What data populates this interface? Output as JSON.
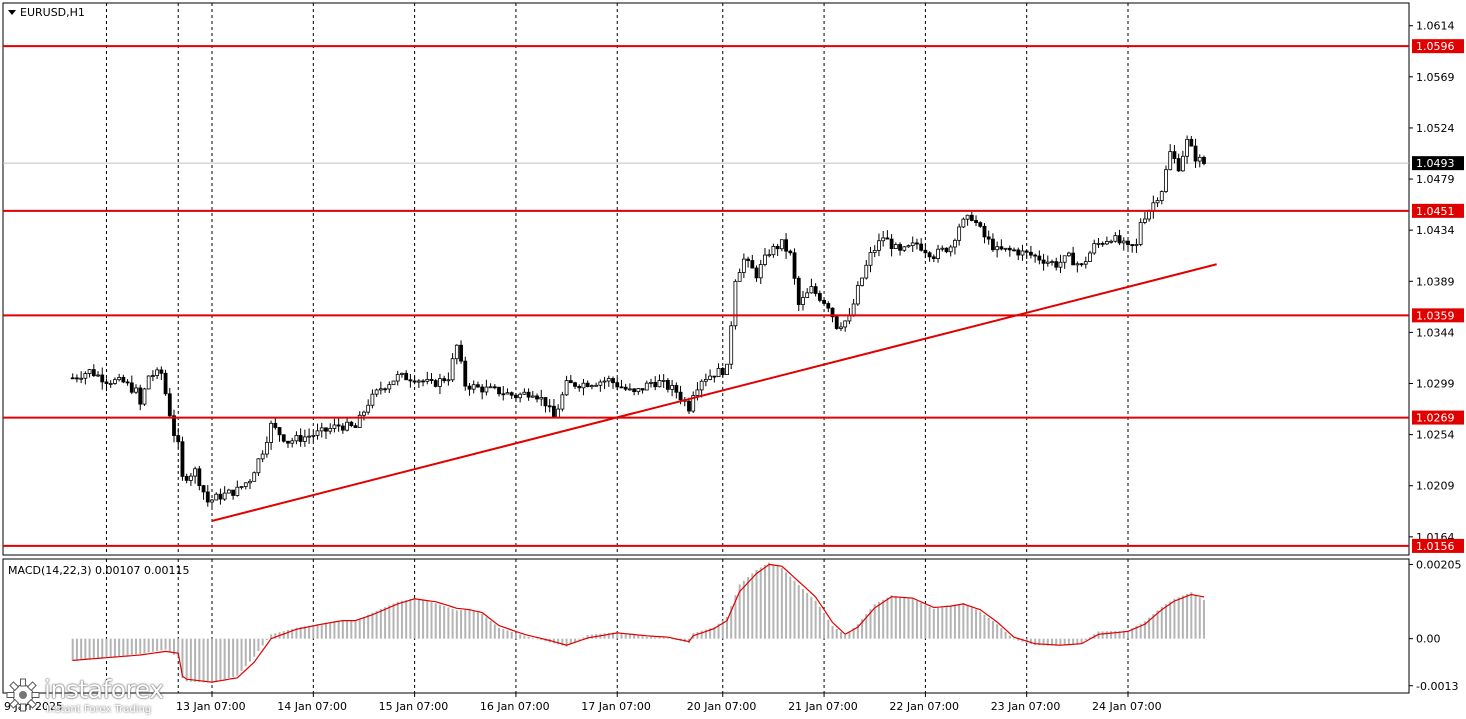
{
  "symbol_label": "EURUSD,H1",
  "macd_label": "MACD(14,22,3) 0.00107 0.00115",
  "watermark": {
    "brand": "instaforex",
    "tagline": "Instant Forex Trading"
  },
  "colors": {
    "level": "#e00000",
    "trend": "#e00000",
    "candle": "#000000",
    "macd_hist": "#b4b4b4",
    "signal": "#e00000",
    "grid": "#000000"
  },
  "chart_data": [
    {
      "type": "candlestick",
      "symbol": "EURUSD",
      "timeframe": "H1",
      "y_ticks": [
        "1.0614",
        "1.0569",
        "1.0524",
        "1.0479",
        "1.0434",
        "1.0389",
        "1.0344",
        "1.0299",
        "1.0254",
        "1.0209",
        "1.0164"
      ],
      "ylim": [
        1.0148,
        1.0634
      ],
      "current_price": "1.0493",
      "x_ticks": [
        "13 Jan 07:00",
        "14 Jan 07:00",
        "15 Jan 07:00",
        "16 Jan 07:00",
        "17 Jan 07:00",
        "20 Jan 07:00",
        "21 Jan 07:00",
        "22 Jan 07:00",
        "23 Jan 07:00",
        "24 Jan 07:00"
      ],
      "first_date_label": "9 Jan 2025",
      "horizontal_levels": [
        "1.0596",
        "1.0451",
        "1.0359",
        "1.0269",
        "1.0156"
      ],
      "trendline": {
        "from": [
          "13 Jan 07:00",
          1.0178
        ],
        "to": [
          "25 Jan 04:00",
          1.0404
        ]
      },
      "close_path": [
        [
          "9 Jan 23:00",
          1.0304
        ],
        [
          "10 Jan 03:00",
          1.031
        ],
        [
          "10 Jan 07:00",
          1.0302
        ],
        [
          "10 Jan 11:00",
          1.03
        ],
        [
          "10 Jan 14:00",
          1.0292
        ],
        [
          "10 Jan 15:00",
          1.028
        ],
        [
          "10 Jan 17:00",
          1.0306
        ],
        [
          "10 Jan 20:00",
          1.0308
        ],
        [
          "10 Jan 23:00",
          1.0255
        ],
        [
          "11 Jan 02:00",
          1.0244
        ],
        [
          "11 Jan 07:00",
          1.0248
        ],
        [
          "11 Jan 10:00",
          1.024
        ],
        [
          "12 Jan 23:00",
          1.0213
        ],
        [
          "13 Jan 03:00",
          1.0222
        ],
        [
          "13 Jan 06:00",
          1.0195
        ],
        [
          "13 Jan 09:00",
          1.02
        ],
        [
          "13 Jan 13:00",
          1.0205
        ],
        [
          "13 Jan 16:00",
          1.0215
        ],
        [
          "13 Jan 19:00",
          1.024
        ],
        [
          "13 Jan 21:00",
          1.0262
        ],
        [
          "14 Jan 01:00",
          1.0248
        ],
        [
          "14 Jan 05:00",
          1.0252
        ],
        [
          "14 Jan 09:00",
          1.0256
        ],
        [
          "14 Jan 13:00",
          1.0262
        ],
        [
          "14 Jan 17:00",
          1.026
        ],
        [
          "14 Jan 20:00",
          1.0282
        ],
        [
          "14 Jan 23:00",
          1.0295
        ],
        [
          "15 Jan 03:00",
          1.0305
        ],
        [
          "15 Jan 07:00",
          1.0304
        ],
        [
          "15 Jan 11:00",
          1.0298
        ],
        [
          "15 Jan 15:00",
          1.0305
        ],
        [
          "15 Jan 17:00",
          1.0332
        ],
        [
          "15 Jan 19:00",
          1.0298
        ],
        [
          "15 Jan 22:00",
          1.0295
        ],
        [
          "16 Jan 03:00",
          1.0292
        ],
        [
          "16 Jan 07:00",
          1.0288
        ],
        [
          "16 Jan 11:00",
          1.0292
        ],
        [
          "16 Jan 14:00",
          1.0282
        ],
        [
          "16 Jan 16:00",
          1.0268
        ],
        [
          "16 Jan 19:00",
          1.0298
        ],
        [
          "16 Jan 23:00",
          1.0299
        ],
        [
          "17 Jan 05:00",
          1.0302
        ],
        [
          "17 Jan 07:00",
          1.0298
        ],
        [
          "17 Jan 11:00",
          1.029
        ],
        [
          "17 Jan 15:00",
          1.03
        ],
        [
          "17 Jan 17:00",
          1.03
        ],
        [
          "17 Jan 21:00",
          1.0292
        ],
        [
          "18 Jan 02:00",
          1.0278
        ],
        [
          "18 Jan 06:00",
          1.0286
        ],
        [
          "20 Jan 02:00",
          1.0303
        ],
        [
          "20 Jan 05:00",
          1.0308
        ],
        [
          "20 Jan 08:00",
          1.0312
        ],
        [
          "20 Jan 10:00",
          1.0392
        ],
        [
          "20 Jan 12:00",
          1.0408
        ],
        [
          "20 Jan 15:00",
          1.0395
        ],
        [
          "20 Jan 18:00",
          1.0415
        ],
        [
          "20 Jan 21:00",
          1.0422
        ],
        [
          "20 Jan 23:00",
          1.0412
        ],
        [
          "21 Jan 01:00",
          1.0368
        ],
        [
          "21 Jan 04:00",
          1.0382
        ],
        [
          "21 Jan 08:00",
          1.0368
        ],
        [
          "21 Jan 10:00",
          1.035
        ],
        [
          "21 Jan 13:00",
          1.0356
        ],
        [
          "21 Jan 15:00",
          1.0382
        ],
        [
          "21 Jan 18:00",
          1.0412
        ],
        [
          "21 Jan 21:00",
          1.0428
        ],
        [
          "22 Jan 01:00",
          1.0414
        ],
        [
          "22 Jan 05:00",
          1.0422
        ],
        [
          "22 Jan 09:00",
          1.0412
        ],
        [
          "22 Jan 13:00",
          1.042
        ],
        [
          "22 Jan 15:00",
          1.0438
        ],
        [
          "22 Jan 18:00",
          1.0446
        ],
        [
          "22 Jan 21:00",
          1.0428
        ],
        [
          "23 Jan 00:00",
          1.0416
        ],
        [
          "23 Jan 04:00",
          1.0416
        ],
        [
          "23 Jan 08:00",
          1.0412
        ],
        [
          "23 Jan 11:00",
          1.0408
        ],
        [
          "23 Jan 14:00",
          1.0404
        ],
        [
          "23 Jan 17:00",
          1.041
        ],
        [
          "23 Jan 20:00",
          1.0402
        ],
        [
          "23 Jan 23:00",
          1.042
        ],
        [
          "24 Jan 03:00",
          1.0428
        ],
        [
          "24 Jan 07:00",
          1.0418
        ],
        [
          "24 Jan 09:00",
          1.042
        ],
        [
          "24 Jan 10:00",
          1.0442
        ],
        [
          "24 Jan 12:00",
          1.0452
        ],
        [
          "24 Jan 15:00",
          1.047
        ],
        [
          "24 Jan 17:00",
          1.0502
        ],
        [
          "24 Jan 19:00",
          1.049
        ],
        [
          "24 Jan 21:00",
          1.0512
        ],
        [
          "24 Jan 23:00",
          1.0498
        ],
        [
          "25 Jan 01:00",
          1.0493
        ]
      ],
      "macd": {
        "title": "MACD(14,22,3) 0.00107 0.00115",
        "parameters": [
          14,
          22,
          3
        ],
        "main": "0.00107",
        "signal": "0.00115",
        "y_ticks": [
          "0.00205",
          "0.00",
          "-0.0013"
        ],
        "ylim": [
          -0.0015,
          0.0022
        ],
        "histogram_path": [
          [
            "9 Jan 23:00",
            -0.00062
          ],
          [
            "10 Jan 15:00",
            -0.00042
          ],
          [
            "10 Jan 21:00",
            -0.0003
          ],
          [
            "11 Jan 01:00",
            -0.00052
          ],
          [
            "11 Jan 07:00",
            -0.00082
          ],
          [
            "11 Jan 13:00",
            -0.001
          ],
          [
            "13 Jan 01:00",
            -0.00118
          ],
          [
            "13 Jan 07:00",
            -0.00122
          ],
          [
            "13 Jan 13:00",
            -0.00102
          ],
          [
            "13 Jan 17:00",
            -0.0005
          ],
          [
            "13 Jan 21:00",
            0.00012
          ],
          [
            "14 Jan 03:00",
            0.0003
          ],
          [
            "14 Jan 09:00",
            0.00042
          ],
          [
            "14 Jan 14:00",
            0.00052
          ],
          [
            "14 Jan 17:00",
            0.00048
          ],
          [
            "14 Jan 21:00",
            0.00072
          ],
          [
            "15 Jan 03:00",
            0.00102
          ],
          [
            "15 Jan 07:00",
            0.00112
          ],
          [
            "15 Jan 12:00",
            0.00098
          ],
          [
            "15 Jan 17:00",
            0.00078
          ],
          [
            "15 Jan 20:00",
            0.00082
          ],
          [
            "15 Jan 23:00",
            0.00068
          ],
          [
            "16 Jan 03:00",
            0.0003
          ],
          [
            "16 Jan 09:00",
            8e-05
          ],
          [
            "16 Jan 15:00",
            -0.0001
          ],
          [
            "16 Jan 19:00",
            -0.00022
          ],
          [
            "17 Jan 00:00",
            0.0001
          ],
          [
            "17 Jan 07:00",
            0.00018
          ],
          [
            "17 Jan 14:00",
            5e-05
          ],
          [
            "17 Jan 19:00",
            2e-05
          ],
          [
            "18 Jan 00:00",
            -0.00012
          ],
          [
            "18 Jan 05:00",
            -0.00018
          ],
          [
            "20 Jan 00:00",
            0.00015
          ],
          [
            "20 Jan 05:00",
            0.00032
          ],
          [
            "20 Jan 08:00",
            0.0006
          ],
          [
            "20 Jan 11:00",
            0.0015
          ],
          [
            "20 Jan 15:00",
            0.0019
          ],
          [
            "20 Jan 18:00",
            0.0021
          ],
          [
            "20 Jan 21:00",
            0.00195
          ],
          [
            "21 Jan 01:00",
            0.00148
          ],
          [
            "21 Jan 05:00",
            0.00105
          ],
          [
            "21 Jan 09:00",
            0.00035
          ],
          [
            "21 Jan 12:00",
            0.0001
          ],
          [
            "21 Jan 15:00",
            0.0004
          ],
          [
            "21 Jan 19:00",
            0.00095
          ],
          [
            "21 Jan 23:00",
            0.0012
          ],
          [
            "22 Jan 04:00",
            0.0011
          ],
          [
            "22 Jan 09:00",
            0.00082
          ],
          [
            "22 Jan 13:00",
            0.00092
          ],
          [
            "22 Jan 16:00",
            0.00098
          ],
          [
            "22 Jan 20:00",
            0.00075
          ],
          [
            "23 Jan 00:00",
            0.0004
          ],
          [
            "23 Jan 04:00",
            -2e-05
          ],
          [
            "23 Jan 09:00",
            -0.00018
          ],
          [
            "23 Jan 15:00",
            -0.0002
          ],
          [
            "23 Jan 20:00",
            -0.00012
          ],
          [
            "24 Jan 00:00",
            0.0002
          ],
          [
            "24 Jan 07:00",
            0.00022
          ],
          [
            "24 Jan 11:00",
            0.00048
          ],
          [
            "24 Jan 15:00",
            0.00088
          ],
          [
            "24 Jan 18:00",
            0.0011
          ],
          [
            "24 Jan 22:00",
            0.00128
          ],
          [
            "25 Jan 01:00",
            0.00107
          ]
        ],
        "signal_path": [
          [
            "9 Jan 23:00",
            -0.0006
          ],
          [
            "10 Jan 15:00",
            -0.00045
          ],
          [
            "10 Jan 21:00",
            -0.00035
          ],
          [
            "11 Jan 01:00",
            -0.0004
          ],
          [
            "11 Jan 07:00",
            -0.00075
          ],
          [
            "11 Jan 13:00",
            -0.00095
          ],
          [
            "13 Jan 01:00",
            -0.00112
          ],
          [
            "13 Jan 07:00",
            -0.0012
          ],
          [
            "13 Jan 13:00",
            -0.00108
          ],
          [
            "13 Jan 17:00",
            -0.00065
          ],
          [
            "13 Jan 21:00",
            0.0
          ],
          [
            "14 Jan 03:00",
            0.00026
          ],
          [
            "14 Jan 09:00",
            0.0004
          ],
          [
            "14 Jan 14:00",
            0.0005
          ],
          [
            "14 Jan 17:00",
            0.0005
          ],
          [
            "14 Jan 21:00",
            0.00066
          ],
          [
            "15 Jan 03:00",
            0.00096
          ],
          [
            "15 Jan 07:00",
            0.0011
          ],
          [
            "15 Jan 12:00",
            0.00102
          ],
          [
            "15 Jan 17:00",
            0.00084
          ],
          [
            "15 Jan 20:00",
            0.0008
          ],
          [
            "15 Jan 23:00",
            0.00072
          ],
          [
            "16 Jan 03:00",
            0.00036
          ],
          [
            "16 Jan 09:00",
            0.00012
          ],
          [
            "16 Jan 15:00",
            -5e-05
          ],
          [
            "16 Jan 19:00",
            -0.00018
          ],
          [
            "17 Jan 00:00",
            2e-05
          ],
          [
            "17 Jan 07:00",
            0.00016
          ],
          [
            "17 Jan 14:00",
            8e-05
          ],
          [
            "17 Jan 19:00",
            4e-05
          ],
          [
            "18 Jan 00:00",
            -8e-05
          ],
          [
            "18 Jan 05:00",
            -0.00016
          ],
          [
            "20 Jan 00:00",
            8e-05
          ],
          [
            "20 Jan 05:00",
            0.00028
          ],
          [
            "20 Jan 08:00",
            0.0005
          ],
          [
            "20 Jan 11:00",
            0.0013
          ],
          [
            "20 Jan 15:00",
            0.0018
          ],
          [
            "20 Jan 18:00",
            0.00205
          ],
          [
            "20 Jan 21:00",
            0.002
          ],
          [
            "21 Jan 01:00",
            0.00158
          ],
          [
            "21 Jan 05:00",
            0.00115
          ],
          [
            "21 Jan 09:00",
            0.00045
          ],
          [
            "21 Jan 12:00",
            0.00012
          ],
          [
            "21 Jan 15:00",
            0.00032
          ],
          [
            "21 Jan 19:00",
            0.00085
          ],
          [
            "21 Jan 23:00",
            0.00116
          ],
          [
            "22 Jan 04:00",
            0.00112
          ],
          [
            "22 Jan 09:00",
            0.00086
          ],
          [
            "22 Jan 13:00",
            0.0009
          ],
          [
            "22 Jan 16:00",
            0.00096
          ],
          [
            "22 Jan 20:00",
            0.0008
          ],
          [
            "23 Jan 00:00",
            0.00046
          ],
          [
            "23 Jan 04:00",
            4e-05
          ],
          [
            "23 Jan 09:00",
            -0.00014
          ],
          [
            "23 Jan 15:00",
            -0.00018
          ],
          [
            "23 Jan 20:00",
            -0.00014
          ],
          [
            "24 Jan 00:00",
            0.00012
          ],
          [
            "24 Jan 07:00",
            0.0002
          ],
          [
            "24 Jan 11:00",
            0.0004
          ],
          [
            "24 Jan 15:00",
            0.0008
          ],
          [
            "24 Jan 18:00",
            0.00104
          ],
          [
            "24 Jan 22:00",
            0.00122
          ],
          [
            "25 Jan 01:00",
            0.00115
          ]
        ]
      }
    }
  ]
}
